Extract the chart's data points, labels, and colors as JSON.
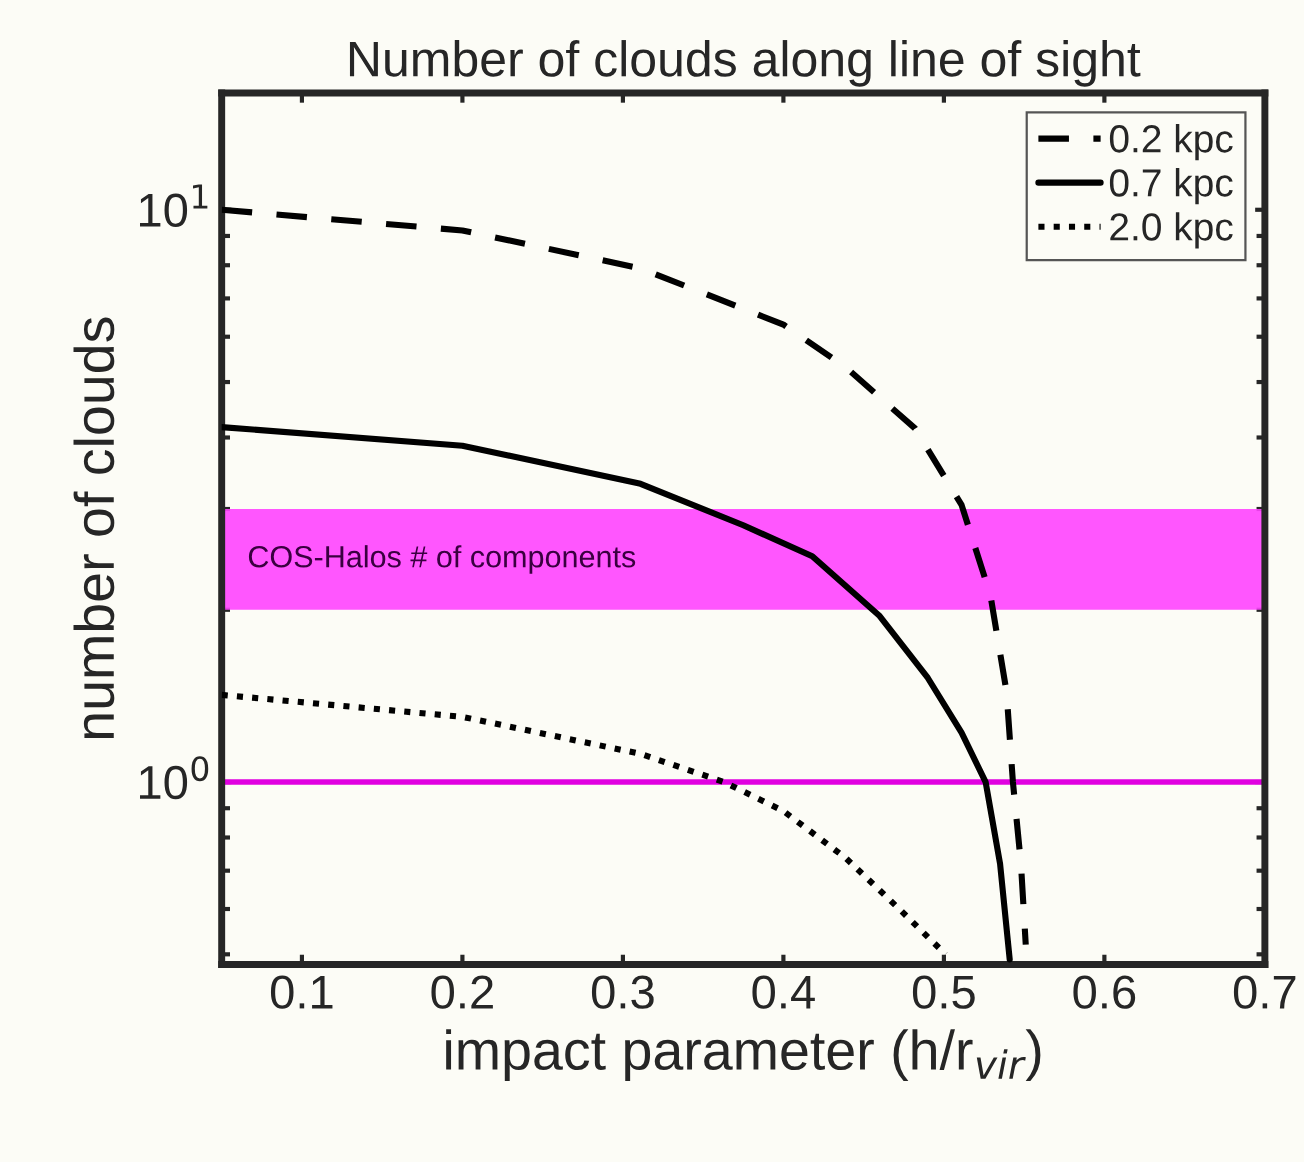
{
  "chart_data": {
    "type": "line",
    "title": "Number of clouds along line of sight",
    "xlabel": "impact parameter (h/r$_{vir}$)",
    "ylabel": "number of clouds",
    "log": "y",
    "xlim": [
      0.05,
      0.7
    ],
    "ylim": [
      0.48,
      16
    ],
    "xticks": [
      0.1,
      0.2,
      0.3,
      0.4,
      0.5,
      0.6,
      0.7
    ],
    "yticks": [
      {
        "value": 1,
        "label": "10$^{0}$"
      },
      {
        "value": 10,
        "label": "10$^{1}$"
      }
    ],
    "legend": "top right",
    "series": [
      {
        "name": "0.2 kpc",
        "color": "#000000",
        "line_style": "dashed",
        "x": [
          0.05,
          0.2,
          0.311,
          0.4,
          0.439,
          0.482,
          0.511,
          0.529,
          0.539,
          0.543,
          0.548,
          0.551
        ],
        "values": [
          10.0,
          9.2,
          7.9,
          6.3,
          5.3,
          4.15,
          3.05,
          2.12,
          1.44,
          1.0,
          0.72,
          0.52
        ]
      },
      {
        "name": "0.7 kpc",
        "color": "#000000",
        "line_style": "solid",
        "x": [
          0.05,
          0.2,
          0.311,
          0.375,
          0.418,
          0.46,
          0.49,
          0.511,
          0.526,
          0.535,
          0.541
        ],
        "values": [
          4.17,
          3.87,
          3.32,
          2.81,
          2.48,
          1.95,
          1.52,
          1.22,
          1.0,
          0.72,
          0.49
        ]
      },
      {
        "name": "2.0 kpc",
        "color": "#000000",
        "line_style": "dotted",
        "x": [
          0.05,
          0.2,
          0.311,
          0.363,
          0.4,
          0.439,
          0.473,
          0.501
        ],
        "values": [
          1.42,
          1.3,
          1.12,
          1.0,
          0.89,
          0.736,
          0.597,
          0.5
        ]
      }
    ],
    "bands": [
      {
        "axis": "y",
        "from": 2,
        "to": 3,
        "label": "COS-Halos # of components",
        "color": "#ff44ff"
      }
    ],
    "ref_lines": [
      {
        "axis": "y",
        "value": 1,
        "color": "#e000e0",
        "line_style": "solid"
      }
    ]
  }
}
